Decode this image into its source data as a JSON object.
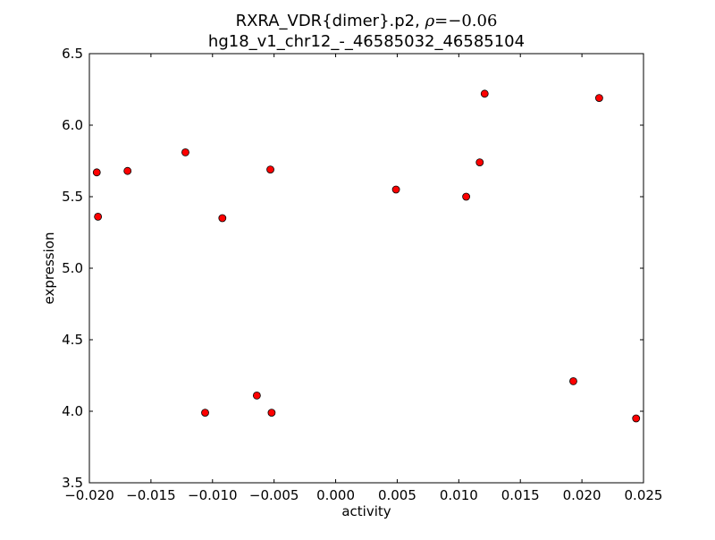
{
  "chart_data": {
    "type": "scatter",
    "title_line1_prefix": "RXRA_VDR{dimer}.p2, ",
    "title_rho_symbol": "ρ",
    "title_rho_value": "=−0.06",
    "title_line2": "hg18_v1_chr12_-_46585032_46585104",
    "xlabel": "activity",
    "ylabel": "expression",
    "xlim": [
      -0.02,
      0.025
    ],
    "ylim": [
      3.5,
      6.5
    ],
    "xticks": [
      -0.02,
      -0.015,
      -0.01,
      -0.005,
      0.0,
      0.005,
      0.01,
      0.015,
      0.02,
      0.025
    ],
    "xtick_labels": [
      "−0.020",
      "−0.015",
      "−0.010",
      "−0.005",
      "0.000",
      "0.005",
      "0.010",
      "0.015",
      "0.020",
      "0.025"
    ],
    "yticks": [
      3.5,
      4.0,
      4.5,
      5.0,
      5.5,
      6.0,
      6.5
    ],
    "ytick_labels": [
      "3.5",
      "4.0",
      "4.5",
      "5.0",
      "5.5",
      "6.0",
      "6.5"
    ],
    "grid": false,
    "marker_color": "#ff0000",
    "points": [
      {
        "x": -0.0194,
        "y": 5.67
      },
      {
        "x": -0.0193,
        "y": 5.36
      },
      {
        "x": -0.0169,
        "y": 5.68
      },
      {
        "x": -0.0122,
        "y": 5.81
      },
      {
        "x": -0.0092,
        "y": 5.35
      },
      {
        "x": -0.0053,
        "y": 5.69
      },
      {
        "x": -0.0106,
        "y": 3.99
      },
      {
        "x": -0.0064,
        "y": 4.11
      },
      {
        "x": -0.0052,
        "y": 3.99
      },
      {
        "x": 0.0049,
        "y": 5.55
      },
      {
        "x": 0.0106,
        "y": 5.5
      },
      {
        "x": 0.0117,
        "y": 5.74
      },
      {
        "x": 0.0121,
        "y": 6.22
      },
      {
        "x": 0.0193,
        "y": 4.21
      },
      {
        "x": 0.0214,
        "y": 6.19
      },
      {
        "x": 0.0244,
        "y": 3.95
      }
    ]
  }
}
